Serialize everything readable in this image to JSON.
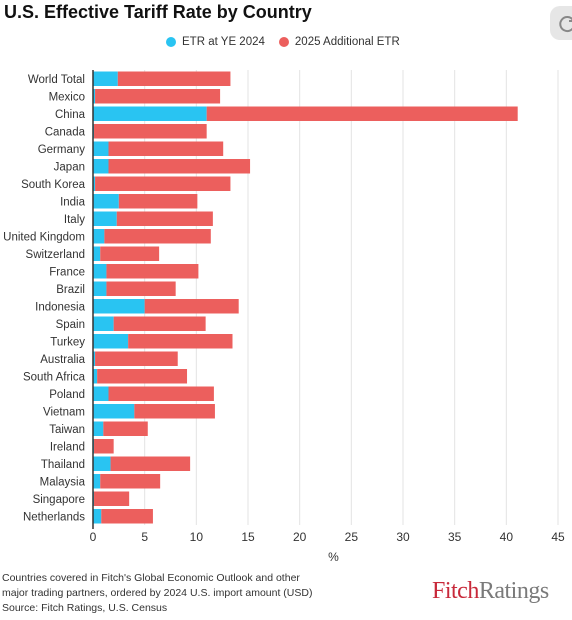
{
  "chart_data": {
    "type": "bar",
    "stacked": true,
    "orientation": "horizontal",
    "title": "U.S. Effective Tariff Rate by Country",
    "xlabel": "%",
    "xlim": [
      0,
      45
    ],
    "xticks": [
      0,
      5,
      10,
      15,
      20,
      25,
      30,
      35,
      40,
      45
    ],
    "grid": true,
    "legend_position": "top",
    "categories": [
      "World Total",
      "Mexico",
      "China",
      "Canada",
      "Germany",
      "Japan",
      "South Korea",
      "India",
      "Italy",
      "United Kingdom",
      "Switzerland",
      "France",
      "Brazil",
      "Indonesia",
      "Spain",
      "Turkey",
      "Australia",
      "South Africa",
      "Poland",
      "Vietnam",
      "Taiwan",
      "Ireland",
      "Thailand",
      "Malaysia",
      "Singapore",
      "Netherlands"
    ],
    "series": [
      {
        "name": "ETR at YE 2024",
        "color": "#29c4f2",
        "values": [
          2.4,
          0.2,
          11.0,
          0.1,
          1.5,
          1.5,
          0.2,
          2.5,
          2.3,
          1.1,
          0.7,
          1.3,
          1.3,
          5.0,
          2.0,
          3.4,
          0.2,
          0.4,
          1.5,
          4.0,
          1.0,
          0.1,
          1.7,
          0.7,
          0.1,
          0.8
        ]
      },
      {
        "name": "2025 Additional ETR",
        "color": "#ec5f5d",
        "values": [
          10.9,
          12.1,
          30.1,
          10.9,
          11.1,
          13.7,
          13.1,
          7.6,
          9.3,
          10.3,
          5.7,
          8.9,
          6.7,
          9.1,
          8.9,
          10.1,
          8.0,
          8.7,
          10.2,
          7.8,
          4.3,
          1.9,
          7.7,
          5.8,
          3.4,
          5.0
        ]
      }
    ]
  },
  "footnote": {
    "line1": "Countries covered in Fitch's Global Economic Outlook and other",
    "line2": "major trading partners, ordered by 2024 U.S.  import amount (USD)",
    "line3": "Source: Fitch Ratings, U.S. Census"
  },
  "logo": {
    "part1": "Fitch",
    "part2": "Ratings"
  }
}
